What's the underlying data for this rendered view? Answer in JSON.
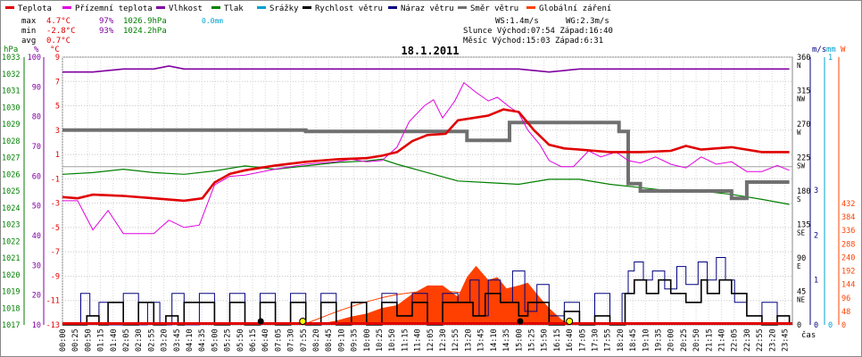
{
  "legend": [
    {
      "label": "Teplota",
      "color": "#e00000"
    },
    {
      "label": "Přízemní teplota",
      "color": "#e000e0"
    },
    {
      "label": "Vlhkost",
      "color": "#8000a0"
    },
    {
      "label": "Tlak",
      "color": "#008000"
    },
    {
      "label": "Srážky",
      "color": "#00a0d0"
    },
    {
      "label": "Rychlost větru",
      "color": "#000000"
    },
    {
      "label": "Náraz větru",
      "color": "#000080"
    },
    {
      "label": "Směr větru",
      "color": "#707070"
    },
    {
      "label": "Globální záření",
      "color": "#ff4000"
    }
  ],
  "stats": {
    "max_label": "max",
    "max_temp": "4.7°C",
    "max_hum": "97%",
    "max_press": "1026.9hPa",
    "max_rain": "0.0mm",
    "min_label": "min",
    "min_temp": "-2.8°C",
    "min_hum": "93%",
    "min_press": "1024.2hPa",
    "avg_label": "avg",
    "avg_temp": "0.7°C",
    "ws": "WS:1.4m/s",
    "wg": "WG:2.3m/s",
    "sun": "Slunce Východ:07:54  Západ:16:40",
    "moon": "Měsíc  Východ:15:03  Západ:6:31"
  },
  "chart_data": {
    "type": "line",
    "title": "18.1.2011",
    "xlabel": "čas",
    "x_ticks": [
      "00:00",
      "00:25",
      "00:50",
      "01:15",
      "01:40",
      "02:05",
      "02:30",
      "02:55",
      "03:20",
      "03:45",
      "04:10",
      "04:35",
      "05:00",
      "05:25",
      "05:50",
      "06:15",
      "06:40",
      "07:05",
      "07:30",
      "07:55",
      "08:20",
      "08:45",
      "09:10",
      "09:35",
      "10:00",
      "10:25",
      "10:50",
      "11:15",
      "11:40",
      "12:05",
      "12:30",
      "12:55",
      "13:20",
      "13:45",
      "14:10",
      "14:35",
      "15:00",
      "15:25",
      "15:50",
      "16:15",
      "16:40",
      "17:05",
      "17:30",
      "17:55",
      "18:20",
      "18:45",
      "19:10",
      "19:35",
      "20:00",
      "20:25",
      "20:50",
      "21:15",
      "21:40",
      "22:05",
      "22:30",
      "22:55",
      "23:20",
      "23:45"
    ],
    "axes": {
      "hpa": {
        "label": "hPa",
        "ticks": [
          "1017",
          "1018",
          "1019",
          "1020",
          "1021",
          "1022",
          "1023",
          "1024",
          "1025",
          "1026",
          "1027",
          "1028",
          "1029",
          "1030",
          "1031",
          "1032",
          "1033"
        ],
        "range": [
          1017,
          1033
        ]
      },
      "pct": {
        "label": "%",
        "ticks": [
          "10",
          "20",
          "30",
          "40",
          "50",
          "60",
          "70",
          "80",
          "90",
          "100"
        ],
        "range": [
          10,
          100
        ]
      },
      "temp": {
        "label": "°C",
        "ticks": [
          "-13",
          "-11",
          "-9",
          "-7",
          "-5",
          "-3",
          "-1",
          "1",
          "3",
          "5",
          "7",
          "9"
        ],
        "range": [
          -13,
          9
        ]
      },
      "dir": {
        "label": "m/s",
        "ticks": [
          "0",
          "45",
          "90",
          "135",
          "180",
          "225",
          "270",
          "315",
          "360"
        ],
        "sublabels": [
          "",
          "NE",
          "E",
          "SE",
          "S",
          "SW",
          "W",
          "NW",
          "N"
        ]
      },
      "ms": {
        "label": "mm",
        "ticks": [
          "0",
          "1",
          "2",
          "3"
        ]
      },
      "rain": {
        "ticks": [
          "0",
          "1"
        ]
      },
      "rad": {
        "label": "W",
        "ticks": [
          "0",
          "48",
          "96",
          "144",
          "192",
          "240",
          "288",
          "336",
          "384",
          "432"
        ]
      }
    },
    "series": [
      {
        "name": "Teplota",
        "color": "#e00000",
        "axis": "temp",
        "x": [
          0,
          0.5,
          1,
          2,
          3,
          4,
          4.6,
          5,
          5.5,
          6,
          7,
          8,
          9,
          10,
          10.5,
          11,
          11.5,
          12,
          12.6,
          13,
          13.5,
          14,
          14.5,
          15,
          15.5,
          16,
          16.5,
          17,
          17.5,
          18,
          19,
          20,
          20.5,
          21,
          22,
          23,
          23.9
        ],
        "values": [
          -2.5,
          -2.6,
          -2.3,
          -2.4,
          -2.6,
          -2.8,
          -2.6,
          -1.3,
          -0.6,
          -0.3,
          0.1,
          0.4,
          0.6,
          0.7,
          0.9,
          1.2,
          2.1,
          2.6,
          2.7,
          3.8,
          4.0,
          4.2,
          4.7,
          4.5,
          3.0,
          1.8,
          1.5,
          1.4,
          1.3,
          1.2,
          1.2,
          1.3,
          1.7,
          1.4,
          1.6,
          1.2,
          1.2
        ]
      },
      {
        "name": "Přízemní teplota",
        "color": "#e000e0",
        "axis": "temp",
        "x": [
          0,
          0.5,
          1,
          1.5,
          2,
          2.5,
          3,
          3.5,
          4,
          4.5,
          5,
          5.5,
          6,
          7,
          8,
          9,
          9.5,
          10,
          10.5,
          11,
          11.4,
          11.9,
          12.2,
          12.5,
          12.9,
          13.2,
          13.6,
          14,
          14.3,
          14.7,
          15,
          15.3,
          15.7,
          16,
          16.4,
          16.8,
          17.3,
          17.7,
          18.2,
          18.6,
          19,
          19.5,
          20,
          20.5,
          21,
          21.5,
          22,
          22.5,
          23,
          23.5,
          23.9
        ],
        "values": [
          -2.8,
          -2.8,
          -5.2,
          -3.6,
          -5.5,
          -5.5,
          -5.5,
          -4.4,
          -5.0,
          -4.8,
          -1.5,
          -0.8,
          -0.7,
          -0.2,
          0.2,
          0.4,
          0.6,
          0.4,
          0.5,
          1.6,
          3.7,
          5.0,
          5.5,
          4.0,
          5.4,
          6.9,
          6.1,
          5.4,
          5.7,
          4.9,
          4.4,
          3.0,
          1.8,
          0.5,
          0.0,
          0.0,
          1.3,
          0.8,
          1.2,
          0.5,
          0.3,
          0.8,
          0.2,
          -0.1,
          0.8,
          0.2,
          0.4,
          -0.4,
          -0.4,
          0.1,
          -0.3
        ]
      },
      {
        "name": "Vlhkost",
        "color": "#8000a0",
        "axis": "pct",
        "x": [
          0,
          1,
          2,
          3,
          3.5,
          4,
          5,
          6,
          7,
          8,
          9,
          10,
          11,
          12,
          13,
          14,
          15,
          16,
          17,
          18,
          19,
          20,
          21,
          22,
          23,
          23.9
        ],
        "values": [
          95,
          95,
          96,
          96,
          97,
          96,
          96,
          96,
          96,
          96,
          96,
          96,
          96,
          96,
          96,
          96,
          96,
          95,
          96,
          96,
          96,
          96,
          96,
          96,
          96,
          96
        ]
      },
      {
        "name": "Tlak",
        "color": "#008000",
        "axis": "hpa",
        "x": [
          0,
          1,
          2,
          3,
          4,
          5,
          6,
          7,
          8,
          9,
          10,
          10.5,
          11,
          12,
          13,
          14,
          15,
          16,
          17,
          18,
          19,
          20,
          21,
          22,
          23,
          23.9
        ],
        "values": [
          1026.0,
          1026.1,
          1026.3,
          1026.1,
          1026.0,
          1026.2,
          1026.5,
          1026.3,
          1026.5,
          1026.7,
          1026.8,
          1026.9,
          1026.6,
          1026.1,
          1025.6,
          1025.5,
          1025.4,
          1025.7,
          1025.7,
          1025.4,
          1025.2,
          1025.0,
          1025.0,
          1024.8,
          1024.5,
          1024.2
        ]
      },
      {
        "name": "Směr větru",
        "color": "#707070",
        "axis": "dir",
        "x": [
          0,
          2,
          4,
          6,
          8,
          10,
          12,
          12.9,
          13.3,
          13.9,
          14.7,
          15,
          16,
          17,
          18,
          18.3,
          18.6,
          19,
          20,
          21,
          22,
          22.5,
          23,
          23.9
        ],
        "values": [
          262,
          262,
          262,
          262,
          260,
          260,
          260,
          260,
          248,
          248,
          272,
          272,
          272,
          272,
          272,
          260,
          190,
          180,
          180,
          180,
          170,
          192,
          192,
          192
        ]
      },
      {
        "name": "Rychlost větru",
        "color": "#000000",
        "axis": "ms",
        "x": [
          0,
          0.8,
          1.2,
          1.5,
          2,
          2.5,
          3,
          3.4,
          3.8,
          4,
          5,
          5.5,
          6,
          6.5,
          7,
          7.5,
          8,
          8.5,
          9,
          9.5,
          10,
          10.5,
          11,
          11.5,
          12,
          12.5,
          13,
          13.5,
          13.9,
          14.4,
          15,
          15.3,
          16,
          16.5,
          17,
          17.5,
          18,
          18.5,
          18.8,
          19.2,
          19.6,
          20,
          20.5,
          21,
          21.2,
          21.6,
          22,
          22.5,
          23,
          23.5,
          23.9
        ],
        "values": [
          0,
          0.2,
          0,
          0.5,
          0,
          0.5,
          0,
          0.2,
          0,
          0.5,
          0,
          0.5,
          0,
          0.5,
          0,
          0.5,
          0,
          0.5,
          0,
          0.5,
          0,
          0.5,
          0.2,
          0.5,
          0,
          0.5,
          0.5,
          0.2,
          0.7,
          0.5,
          0.2,
          0.5,
          0,
          0.3,
          0,
          0.2,
          0,
          0.7,
          1.0,
          0.7,
          1.0,
          0.7,
          0.5,
          1.0,
          0.7,
          1.0,
          0.7,
          0.2,
          0,
          0.2,
          0
        ]
      },
      {
        "name": "Náraz větru",
        "color": "#000080",
        "axis": "ms",
        "x": [
          0,
          0.6,
          0.9,
          1.2,
          1.5,
          2,
          2.5,
          2.8,
          3.2,
          3.6,
          4,
          4.5,
          5,
          5.5,
          6,
          6.5,
          7,
          7.5,
          8,
          8.5,
          9,
          9.5,
          10,
          10.5,
          11,
          11.5,
          12,
          12.5,
          13,
          13.4,
          13.7,
          14,
          14.4,
          14.8,
          15.2,
          15.6,
          16,
          16.5,
          17,
          17.5,
          18,
          18.4,
          18.6,
          18.8,
          19.1,
          19.4,
          19.8,
          20.2,
          20.5,
          20.9,
          21.2,
          21.5,
          21.8,
          22.1,
          22.5,
          23,
          23.5,
          23.9
        ],
        "values": [
          0,
          0.7,
          0.2,
          0.5,
          0,
          0.7,
          0,
          0.5,
          0,
          0.7,
          0,
          0.7,
          0,
          0.7,
          0,
          0.7,
          0,
          0.7,
          0,
          0.7,
          0,
          0.5,
          0,
          0.7,
          0.2,
          0.7,
          0,
          0.7,
          0.5,
          1.0,
          0.2,
          1.0,
          0.5,
          1.2,
          0.3,
          0.9,
          0.2,
          0.5,
          0,
          0.7,
          0,
          0.7,
          1.2,
          1.4,
          1.0,
          1.2,
          0.8,
          1.3,
          0.9,
          1.4,
          1.0,
          1.5,
          1.0,
          0.5,
          0.2,
          0.5,
          0.2,
          0
        ]
      },
      {
        "name": "Globální záření",
        "color": "#ff4000",
        "axis": "rad",
        "x": [
          7.7,
          8.5,
          9,
          9.5,
          10,
          10.5,
          11,
          11.5,
          12,
          12.5,
          13,
          13.3,
          13.6,
          14,
          14.3,
          14.6,
          15,
          15.3,
          15.6,
          16,
          16.4,
          16.7
        ],
        "values": [
          0,
          5,
          15,
          30,
          40,
          60,
          70,
          110,
          140,
          140,
          100,
          170,
          210,
          160,
          170,
          130,
          140,
          150,
          110,
          60,
          20,
          0
        ]
      }
    ]
  }
}
